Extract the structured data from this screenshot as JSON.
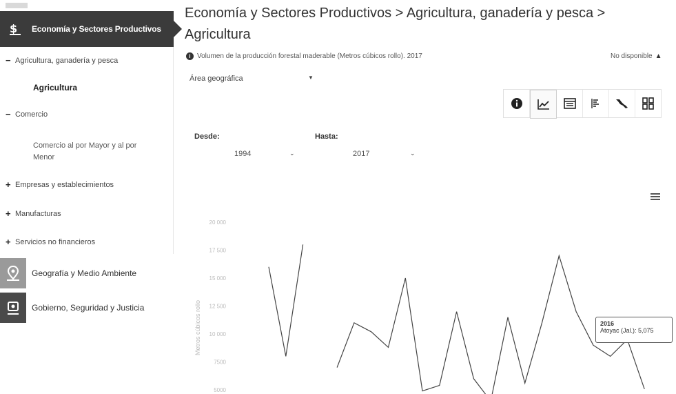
{
  "sidebar": {
    "active_label": "Economía y Sectores Productivos",
    "items": [
      {
        "marker": "−",
        "label": "Agricultura, ganadería y pesca"
      },
      {
        "marker": "−",
        "label": "Comercio"
      },
      {
        "marker": "+",
        "label": "Empresas y establecimientos"
      },
      {
        "marker": "+",
        "label": "Manufacturas"
      },
      {
        "marker": "+",
        "label": "Servicios no financieros"
      }
    ],
    "sub_agri": "Agricultura",
    "sub_comercio": "Comercio al por Mayor y al por Menor",
    "categories": [
      {
        "label": "Geografía y Medio Ambiente",
        "color": "#9a9a9a"
      },
      {
        "label": "Gobierno, Seguridad y Justicia",
        "color": "#4a4a4a"
      }
    ]
  },
  "header": {
    "title": "Economía y Sectores Productivos > Agricultura, ganadería y pesca > Agricultura"
  },
  "indicator": {
    "text": "Volumen de la producción forestal maderable (Metros cúbicos rollo). 2017",
    "status": "No disponible"
  },
  "filters": {
    "area_label": "Área geográfica",
    "desde_label": "Desde:",
    "hasta_label": "Hasta:",
    "desde_value": "1994",
    "hasta_value": "2017"
  },
  "toolbar": {
    "icons": [
      "info-icon",
      "line-chart-icon",
      "table-icon",
      "bar-list-icon",
      "map-icon",
      "grid-icon"
    ],
    "active": "line-chart-icon"
  },
  "chart_data": {
    "type": "line",
    "ylabel": "Metros cúbicos rollo",
    "yticks": [
      "20 000",
      "17 500",
      "15 000",
      "12 500",
      "10 000",
      "7500",
      "5000"
    ],
    "ylim": [
      5000,
      20000
    ],
    "grid": false,
    "series": [
      {
        "segments": [
          {
            "x": [
              1994,
              1995,
              1996
            ],
            "y": [
              16000,
              8000,
              18000
            ]
          },
          {
            "x": [
              1998,
              1999,
              2000,
              2001,
              2002,
              2003,
              2004,
              2005,
              2006,
              2007,
              2008,
              2009,
              2010,
              2011,
              2012,
              2013,
              2014,
              2015,
              2016
            ],
            "y": [
              7000,
              11000,
              10200,
              8800,
              15000,
              4900,
              5400,
              12000,
              6000,
              4000,
              11500,
              5600,
              11000,
              17000,
              12000,
              9000,
              8000,
              9500,
              5075
            ]
          }
        ]
      }
    ],
    "x_range": [
      1994,
      2017
    ],
    "color": "#444444",
    "tooltip": {
      "year": "2016",
      "text": "Atoyac (Jal.): 5,075"
    }
  }
}
